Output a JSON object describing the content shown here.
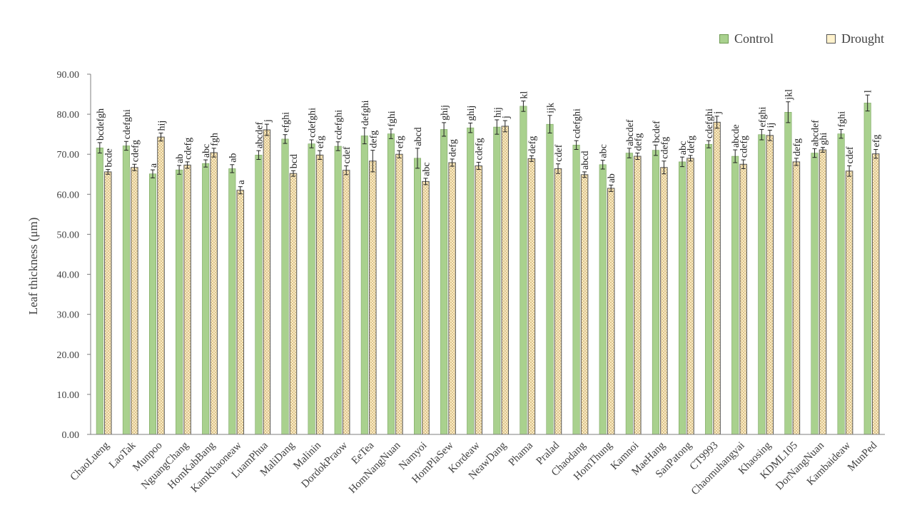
{
  "chart_data": {
    "type": "bar",
    "ylabel": "Leaf thickness (μm)",
    "ylim": [
      0,
      90
    ],
    "yticks": [
      "0.00",
      "10.00",
      "20.00",
      "30.00",
      "40.00",
      "50.00",
      "60.00",
      "70.00",
      "80.00",
      "90.00"
    ],
    "legend_position": "top-right",
    "grid": false,
    "categories": [
      "ChaoLueng",
      "LaoTak",
      "Munpoo",
      "NguangChang",
      "HomKabBang",
      "KamKhaoneaw",
      "LuamPhua",
      "MaliDang",
      "Malinin",
      "DordokPraow",
      "EeTea",
      "HomNangNuan",
      "Namyoi",
      "HomPlaSew",
      "Kordeaw",
      "NeawDang",
      "Phama",
      "Pralad",
      "Chaodang",
      "HomThung",
      "Kamnoi",
      "MaeHang",
      "SanPatong",
      "CT9993",
      "Chaomuhangyai",
      "Khaosing",
      "KDML105",
      "DorNangNuan",
      "Kambaideaw",
      "MunPed"
    ],
    "series": [
      {
        "name": "Control",
        "color": "#A9D18E",
        "stroke": "#6E9A52",
        "values": [
          71.6,
          72.1,
          65.1,
          66.1,
          67.7,
          66.4,
          69.8,
          73.8,
          72.6,
          72.0,
          74.6,
          75.1,
          69.0,
          76.2,
          76.6,
          76.8,
          82.0,
          77.5,
          72.3,
          67.4,
          70.3,
          71.0,
          68.1,
          72.5,
          69.5,
          74.9,
          80.5,
          70.3,
          75.1,
          82.8
        ],
        "errors": [
          1.3,
          1.1,
          1.0,
          1.1,
          0.9,
          1.0,
          1.1,
          1.1,
          1.0,
          1.1,
          2.0,
          1.2,
          2.5,
          1.7,
          1.2,
          1.8,
          1.3,
          2.2,
          1.1,
          1.1,
          1.2,
          1.3,
          1.2,
          0.9,
          1.6,
          1.3,
          2.6,
          1.1,
          1.1,
          2.0
        ],
        "labels": [
          "bcdefgh",
          "cdefghi",
          "a",
          "ab",
          "abc",
          "ab",
          "abcdef",
          "efghi",
          "cdefghi",
          "cdefghi",
          "defghi",
          "fghi",
          "abcd",
          "ghij",
          "ghij",
          "hij",
          "kl",
          "ijk",
          "cdefghi",
          "abc",
          "abcdef",
          "bcdef",
          "abc",
          "cdefghi",
          "abcde",
          "efghi",
          "jkl",
          "abcdef",
          "fghi",
          "l"
        ]
      },
      {
        "name": "Drought",
        "color": "#FFF2CC",
        "stroke": "#555555",
        "values": [
          65.6,
          66.7,
          74.3,
          67.3,
          70.4,
          61.0,
          76.1,
          65.2,
          69.8,
          66.0,
          68.3,
          70.0,
          63.2,
          67.9,
          67.1,
          77.0,
          68.9,
          66.4,
          64.9,
          61.5,
          69.5,
          66.7,
          69.0,
          78.0,
          67.5,
          74.7,
          68.1,
          71.1,
          65.8,
          70.1
        ],
        "errors": [
          0.6,
          0.8,
          1.0,
          0.8,
          1.1,
          0.9,
          1.4,
          0.7,
          1.1,
          1.1,
          2.7,
          0.9,
          0.8,
          0.9,
          0.9,
          1.4,
          0.7,
          1.2,
          0.7,
          0.8,
          0.8,
          1.6,
          0.7,
          1.5,
          1.1,
          1.3,
          0.9,
          0.6,
          1.3,
          1.1
        ],
        "labels": [
          "bcde",
          "cdefg",
          "hij",
          "cdefg",
          "fgh",
          "a",
          "j",
          "bcd",
          "efg",
          "cdef",
          "defg",
          "efg",
          "abc",
          "defg",
          "cdefg",
          "j",
          "defg",
          "cdef",
          "abcd",
          "ab",
          "defg",
          "cdefg",
          "defg",
          "j",
          "cdefg",
          "ij",
          "defg",
          "ghi",
          "cdef",
          "efg"
        ]
      }
    ]
  }
}
